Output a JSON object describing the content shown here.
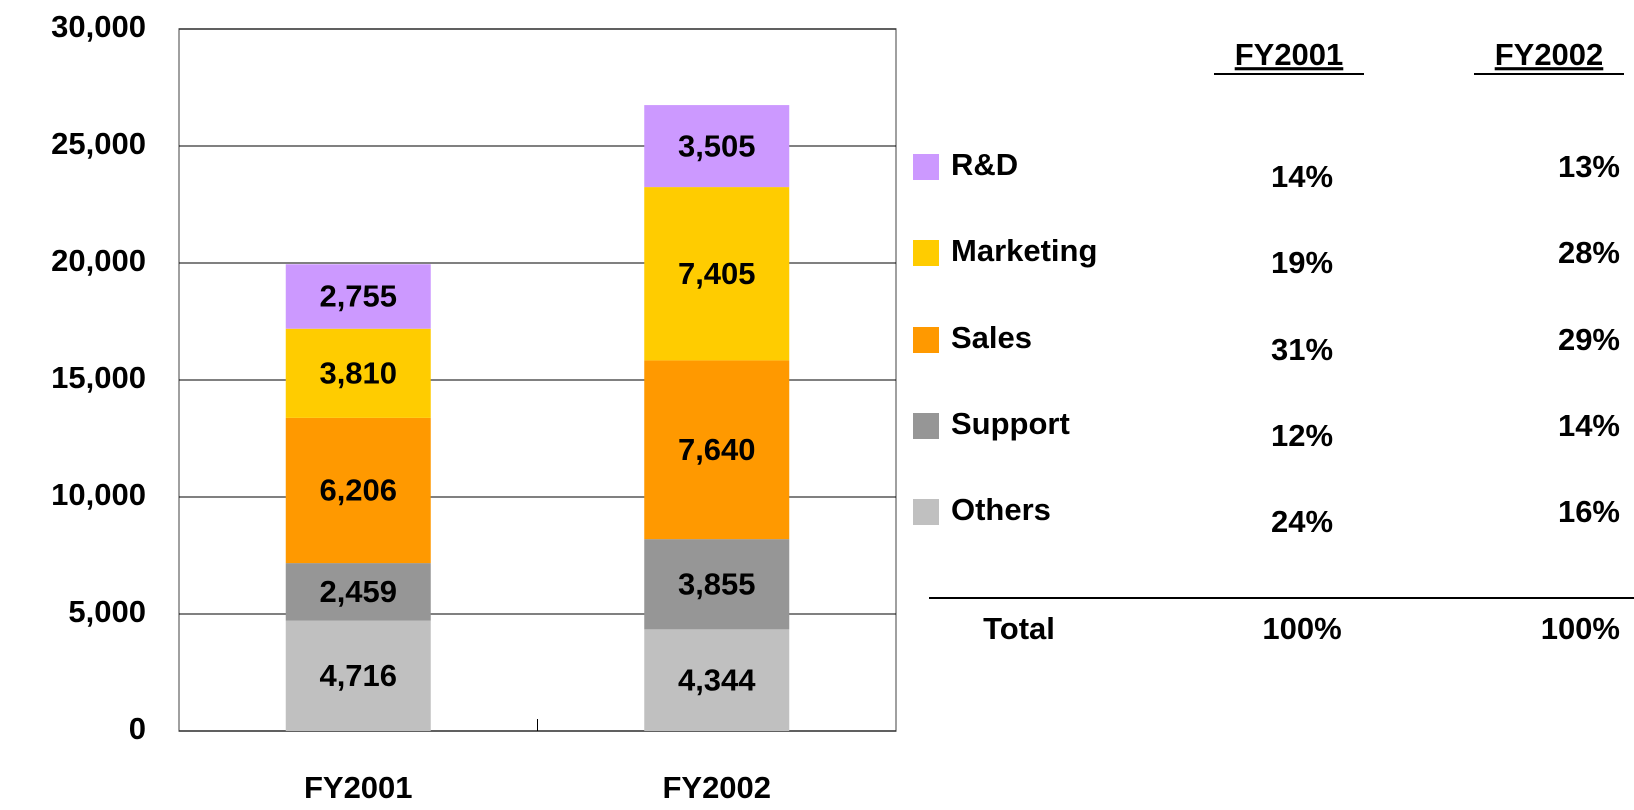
{
  "chart_data": {
    "type": "stacked_bar",
    "categories": [
      "FY2001",
      "FY2002"
    ],
    "series": [
      {
        "name": "Others",
        "color": "#c0c0c0",
        "values": [
          4716,
          4344
        ],
        "value_labels": [
          "4,716",
          "4,344"
        ]
      },
      {
        "name": "Support",
        "color": "#969696",
        "values": [
          2459,
          3855
        ],
        "value_labels": [
          "2,459",
          "3,855"
        ]
      },
      {
        "name": "Sales",
        "color": "#ff9900",
        "values": [
          6206,
          7640
        ],
        "value_labels": [
          "6,206",
          "7,640"
        ]
      },
      {
        "name": "Marketing",
        "color": "#ffcc00",
        "values": [
          3810,
          7405
        ],
        "value_labels": [
          "3,810",
          "7,405"
        ]
      },
      {
        "name": "R&D",
        "color": "#cc99ff",
        "values": [
          2755,
          3505
        ],
        "value_labels": [
          "2,755",
          "3,505"
        ]
      }
    ],
    "ylim": [
      0,
      30000
    ],
    "yticks": [
      0,
      {
        "value": 5000,
        "label": "5,000"
      },
      {
        "value": 10000,
        "label": "10,000"
      },
      {
        "value": 15000,
        "label": "15,000"
      },
      {
        "value": 20000,
        "label": "20,000"
      },
      {
        "value": 25000,
        "label": "25,000"
      },
      {
        "value": 30000,
        "label": "30,000"
      }
    ],
    "grid": true,
    "legend": "right",
    "share_table": {
      "columns": [
        "FY2001",
        "FY2002"
      ],
      "rows": [
        [
          "24%",
          "16%"
        ],
        [
          "12%",
          "14%"
        ],
        [
          "31%",
          "29%"
        ],
        [
          "19%",
          "28%"
        ],
        [
          "14%",
          "13%"
        ]
      ],
      "total_label": "Total",
      "total": [
        "100%",
        "100%"
      ]
    }
  }
}
